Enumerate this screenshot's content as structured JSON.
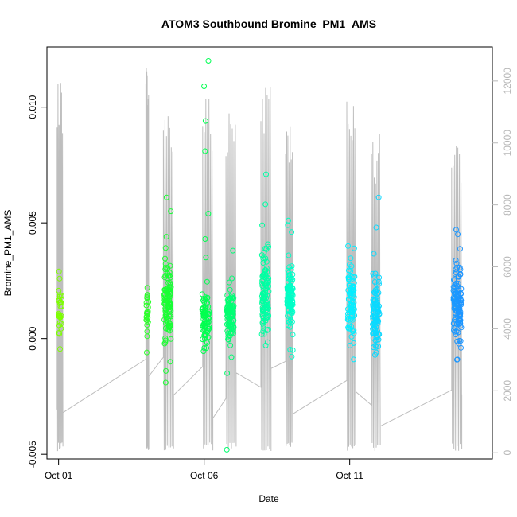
{
  "chart_data": {
    "type": "scatter",
    "title": "ATOM3 Southbound Bromine_PM1_AMS",
    "xlabel": "Date",
    "ylabel": "Bromine_PM1_AMS",
    "x_ticks": [
      {
        "label": "Oct 01",
        "value": 1
      },
      {
        "label": "Oct 06",
        "value": 6
      },
      {
        "label": "Oct 11",
        "value": 11
      }
    ],
    "xlim": [
      0.6,
      15.9
    ],
    "y_ticks": [
      {
        "label": "-0.005",
        "value": -0.005
      },
      {
        "label": "0.000",
        "value": 0.0
      },
      {
        "label": "0.005",
        "value": 0.005
      },
      {
        "label": "0.010",
        "value": 0.01
      }
    ],
    "ylim": [
      -0.0052,
      0.0126
    ],
    "y2_ticks": [
      {
        "label": "0",
        "value": 0
      },
      {
        "label": "2000",
        "value": 2000
      },
      {
        "label": "4000",
        "value": 4000
      },
      {
        "label": "6000",
        "value": 6000
      },
      {
        "label": "8000",
        "value": 8000
      },
      {
        "label": "10000",
        "value": 10000
      },
      {
        "label": "12000",
        "value": 12000
      }
    ],
    "y2lim": [
      -200,
      13100
    ],
    "colors": {
      "altitude_line": "#bebebe",
      "gradient": [
        "#7fff00",
        "#00ff40",
        "#00ffff",
        "#1e90ff"
      ]
    },
    "series": [
      {
        "cluster": "Oct 01",
        "x_center": 1.05,
        "x_spread": 0.06,
        "y_center": 0.00135,
        "y_spread": 0.0009,
        "count": 28,
        "extra_y": [
          0.0029,
          -0.00045,
          0.0002
        ]
      },
      {
        "cluster": "Oct 04",
        "x_center": 4.05,
        "x_spread": 0.04,
        "y_center": 0.0011,
        "y_spread": 0.0007,
        "count": 22,
        "extra_y": [
          0.0022,
          -0.0006,
          0.0003
        ]
      },
      {
        "cluster": "Oct 04-05",
        "x_center": 4.75,
        "x_spread": 0.12,
        "y_center": 0.0016,
        "y_spread": 0.0012,
        "count": 110,
        "extra_y": [
          0.0061,
          0.0055,
          -0.0019,
          -0.0014,
          0.0044
        ]
      },
      {
        "cluster": "Oct 06",
        "x_center": 6.05,
        "x_spread": 0.12,
        "y_center": 0.0009,
        "y_spread": 0.0009,
        "count": 80,
        "extra_y": [
          0.012,
          0.0109,
          0.0094,
          0.0081,
          0.0054,
          0.0043,
          0.0035
        ]
      },
      {
        "cluster": "Oct 07",
        "x_center": 6.9,
        "x_spread": 0.12,
        "y_center": 0.0009,
        "y_spread": 0.0008,
        "count": 95,
        "extra_y": [
          -0.0048,
          -0.0015,
          0.0038,
          0.0026,
          -0.0008
        ]
      },
      {
        "cluster": "Oct 08",
        "x_center": 8.1,
        "x_spread": 0.12,
        "y_center": 0.0018,
        "y_spread": 0.0013,
        "count": 110,
        "extra_y": [
          0.0071,
          0.0058,
          0.0049,
          -0.0003
        ]
      },
      {
        "cluster": "Oct 09",
        "x_center": 8.95,
        "x_spread": 0.1,
        "y_center": 0.0019,
        "y_spread": 0.0011,
        "count": 100,
        "extra_y": [
          0.0051,
          0.0049,
          0.0046,
          -0.0005
        ]
      },
      {
        "cluster": "Oct 11",
        "x_center": 11.05,
        "x_spread": 0.12,
        "y_center": 0.0015,
        "y_spread": 0.0011,
        "count": 90,
        "extra_y": [
          0.004,
          0.0039,
          -0.0009,
          -0.0003
        ]
      },
      {
        "cluster": "Oct 12",
        "x_center": 11.9,
        "x_spread": 0.12,
        "y_center": 0.0012,
        "y_spread": 0.0011,
        "count": 110,
        "extra_y": [
          0.0061,
          0.0048,
          -0.0006
        ]
      },
      {
        "cluster": "Oct 14",
        "x_center": 14.7,
        "x_spread": 0.14,
        "y_center": 0.0015,
        "y_spread": 0.0011,
        "count": 120,
        "extra_y": [
          0.0047,
          0.0045,
          -0.0009,
          -0.0004
        ]
      }
    ],
    "altitude_flights": [
      {
        "start": 0.95,
        "end": 1.15,
        "max": 12000
      },
      {
        "start": 4.0,
        "end": 4.1,
        "max": 12500
      },
      {
        "start": 4.6,
        "end": 4.95,
        "max": 11000
      },
      {
        "start": 5.95,
        "end": 6.3,
        "max": 11500
      },
      {
        "start": 6.75,
        "end": 7.1,
        "max": 11000
      },
      {
        "start": 7.95,
        "end": 8.3,
        "max": 12000
      },
      {
        "start": 8.8,
        "end": 9.05,
        "max": 10800
      },
      {
        "start": 10.9,
        "end": 11.2,
        "max": 11700
      },
      {
        "start": 11.75,
        "end": 12.05,
        "max": 10400
      },
      {
        "start": 14.5,
        "end": 14.85,
        "max": 10000
      }
    ],
    "grid": false,
    "legend": "none"
  }
}
